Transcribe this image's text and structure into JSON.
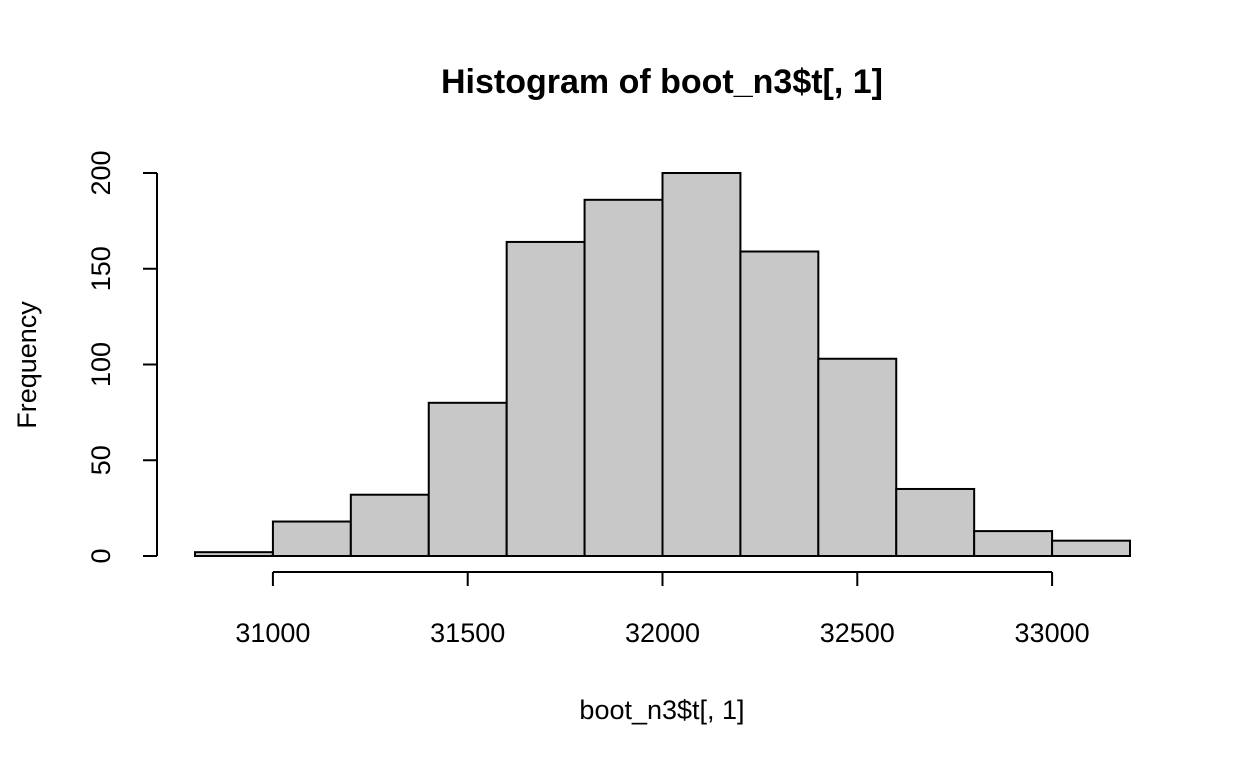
{
  "chart_data": {
    "type": "bar",
    "title": "Histogram of boot_n3$t[, 1]",
    "xlabel": "boot_n3$t[, 1]",
    "ylabel": "Frequency",
    "bins": [
      {
        "start": 30800,
        "end": 31000,
        "count": 2
      },
      {
        "start": 31000,
        "end": 31200,
        "count": 18
      },
      {
        "start": 31200,
        "end": 31400,
        "count": 32
      },
      {
        "start": 31400,
        "end": 31600,
        "count": 80
      },
      {
        "start": 31600,
        "end": 31800,
        "count": 164
      },
      {
        "start": 31800,
        "end": 32000,
        "count": 186
      },
      {
        "start": 32000,
        "end": 32200,
        "count": 200
      },
      {
        "start": 32200,
        "end": 32400,
        "count": 159
      },
      {
        "start": 32400,
        "end": 32600,
        "count": 103
      },
      {
        "start": 32600,
        "end": 32800,
        "count": 35
      },
      {
        "start": 32800,
        "end": 33000,
        "count": 13
      },
      {
        "start": 33000,
        "end": 33200,
        "count": 8
      }
    ],
    "xlim": [
      30800,
      33200
    ],
    "ylim": [
      0,
      200
    ],
    "x_ticks": [
      31000,
      31500,
      32000,
      32500,
      33000
    ],
    "x_tick_labels": [
      "31000",
      "31500",
      "32000",
      "32500",
      "33000"
    ],
    "y_ticks": [
      0,
      50,
      100,
      150,
      200
    ],
    "y_tick_labels": [
      "0",
      "50",
      "100",
      "150",
      "200"
    ],
    "colors": {
      "bar_fill": "#c8c8c8",
      "bar_stroke": "#000000"
    },
    "grid": false
  }
}
